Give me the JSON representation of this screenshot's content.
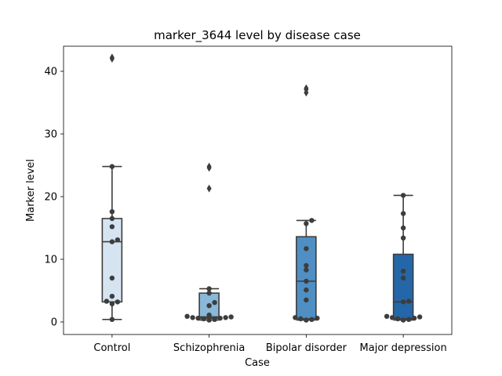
{
  "chart_data": {
    "type": "box",
    "title": "marker_3644 level by disease case",
    "xlabel": "Case",
    "ylabel": "Marker level",
    "categories": [
      "Control",
      "Schizophrenia",
      "Bipolar disorder",
      "Major depression"
    ],
    "ylim": [
      -2,
      44
    ],
    "yticks": [
      0,
      10,
      20,
      30,
      40
    ],
    "grid": false,
    "box_colors": [
      "#d6e4f2",
      "#8ab8d9",
      "#4f8fc3",
      "#2467a9"
    ],
    "series": [
      {
        "category": "Control",
        "q1": 3.2,
        "median": 12.8,
        "q3": 16.5,
        "whisker_low": 0.4,
        "whisker_high": 24.8,
        "outliers": [
          42.0,
          42.2
        ],
        "points": [
          0.4,
          2.9,
          3.2,
          3.3,
          4.1,
          7.0,
          12.8,
          13.1,
          15.2,
          16.5,
          17.6,
          24.8
        ]
      },
      {
        "category": "Schizophrenia",
        "q1": 0.6,
        "median": 0.8,
        "q3": 4.6,
        "whisker_low": 0.3,
        "whisker_high": 5.3,
        "outliers": [
          21.3,
          24.6,
          24.8
        ],
        "points": [
          0.3,
          0.4,
          0.5,
          0.6,
          0.6,
          0.7,
          0.7,
          0.8,
          0.9,
          1.1,
          2.6,
          3.1,
          4.6,
          5.3
        ]
      },
      {
        "category": "Bipolar disorder",
        "q1": 0.5,
        "median": 6.5,
        "q3": 13.6,
        "whisker_low": 0.3,
        "whisker_high": 16.2,
        "outliers": [
          36.6,
          37.1,
          37.3
        ],
        "points": [
          0.3,
          0.4,
          0.5,
          0.6,
          0.7,
          3.5,
          5.1,
          6.5,
          8.3,
          9.0,
          11.7,
          15.7,
          16.2
        ]
      },
      {
        "category": "Major depression",
        "q1": 0.5,
        "median": 3.2,
        "q3": 10.8,
        "whisker_low": 0.3,
        "whisker_high": 20.2,
        "points": [
          0.3,
          0.4,
          0.5,
          0.6,
          0.7,
          0.8,
          0.9,
          3.2,
          3.3,
          7.0,
          8.1,
          13.4,
          15.0,
          17.3,
          20.2
        ],
        "outliers": []
      }
    ]
  }
}
